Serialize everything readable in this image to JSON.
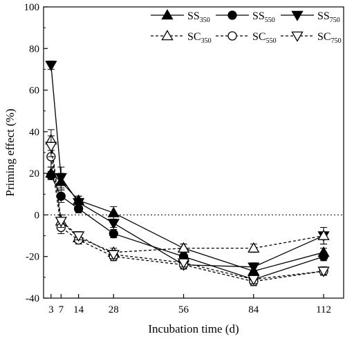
{
  "chart_data": {
    "type": "line",
    "xlabel": "Incubation time (d)",
    "ylabel": "Priming effect (%)",
    "x": [
      3,
      7,
      14,
      28,
      56,
      84,
      112
    ],
    "xticks": [
      3,
      7,
      14,
      28,
      56,
      84,
      112
    ],
    "yticks": [
      -40,
      -20,
      0,
      20,
      40,
      60,
      80,
      100
    ],
    "xlim": [
      0,
      120
    ],
    "ylim": [
      -40,
      100
    ],
    "reference_line": 0,
    "legend_position": "top-right",
    "series": [
      {
        "key": "SS350",
        "base": "SS",
        "sub": "350",
        "marker": "triangle-up",
        "filled": true,
        "dashed": false,
        "values": [
          20,
          16,
          7,
          1,
          -16,
          -27,
          -18
        ],
        "errors": [
          3,
          4,
          2,
          3,
          2,
          3,
          2
        ]
      },
      {
        "key": "SS550",
        "base": "SS",
        "sub": "550",
        "marker": "circle",
        "filled": true,
        "dashed": false,
        "values": [
          19,
          9,
          3,
          -9,
          -20,
          -31,
          -20
        ],
        "errors": [
          2,
          3,
          2,
          2,
          2,
          2,
          2
        ]
      },
      {
        "key": "SS750",
        "base": "SS",
        "sub": "750",
        "marker": "triangle-down",
        "filled": true,
        "dashed": false,
        "values": [
          72,
          18,
          6,
          -4,
          -24,
          -25,
          -10
        ],
        "errors": [
          2,
          5,
          3,
          2,
          2,
          2,
          4
        ]
      },
      {
        "key": "SC350",
        "base": "SC",
        "sub": "350",
        "marker": "triangle-up",
        "filled": false,
        "dashed": true,
        "values": [
          36,
          -3,
          -11,
          -18,
          -16,
          -16,
          -10
        ],
        "errors": [
          5,
          3,
          2,
          2,
          2,
          2,
          4
        ]
      },
      {
        "key": "SC550",
        "base": "SC",
        "sub": "550",
        "marker": "circle",
        "filled": false,
        "dashed": true,
        "values": [
          28,
          -6,
          -12,
          -20,
          -24,
          -32,
          -27
        ],
        "errors": [
          5,
          3,
          2,
          2,
          2,
          2,
          2
        ]
      },
      {
        "key": "SC750",
        "base": "SC",
        "sub": "750",
        "marker": "triangle-down",
        "filled": false,
        "dashed": true,
        "values": [
          33,
          -3,
          -10,
          -19,
          -23,
          -31,
          -27
        ],
        "errors": [
          5,
          3,
          2,
          2,
          2,
          2,
          2
        ]
      }
    ]
  }
}
